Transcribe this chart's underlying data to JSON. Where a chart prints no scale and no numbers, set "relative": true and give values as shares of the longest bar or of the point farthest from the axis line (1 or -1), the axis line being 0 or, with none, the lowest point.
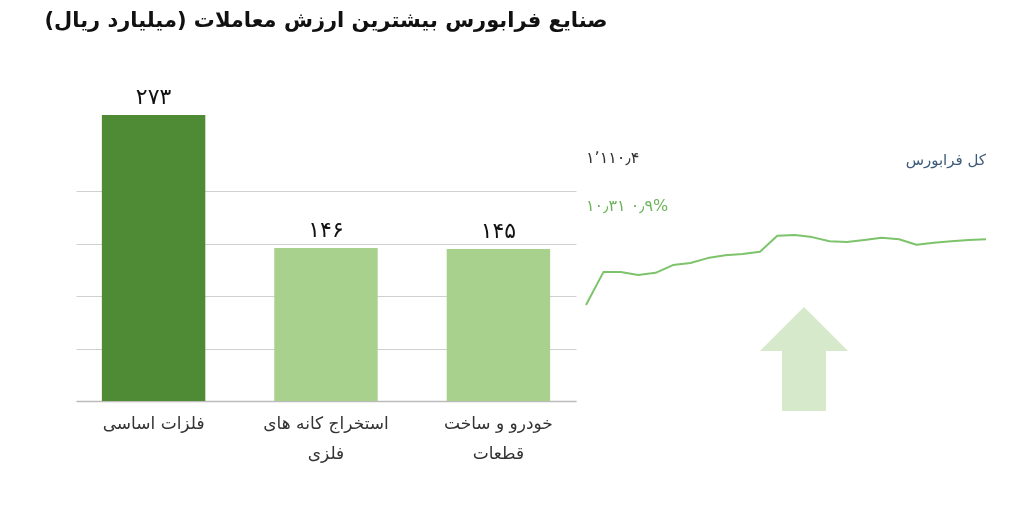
{
  "chart_data": [
    {
      "type": "bar",
      "title": "صنایع فرابورس بیشترین ارزش معاملات  (میلیارد ریال)",
      "categories": [
        "فلزات اساسی",
        "استخراج کانه های فلزی",
        "خودرو و ساخت قطعات"
      ],
      "values": [
        273,
        146,
        145
      ],
      "value_labels": [
        "۲۷۳",
        "۱۴۶",
        "۱۴۵"
      ],
      "colors": [
        "#4f8a35",
        "#a9d18e",
        "#a9d18e"
      ],
      "yticks": [
        {
          "value": 0,
          "label": null
        },
        {
          "value": 50,
          "label": null
        },
        {
          "value": 100,
          "label": null
        },
        {
          "value": 150,
          "label": null
        },
        {
          "value": 200,
          "label": null
        }
      ],
      "tick_labels": "x",
      "grid": "y"
    },
    {
      "type": "line",
      "relative": true,
      "title": "کل فرابورس",
      "annotations": [
        "۱٬۱۱۰٫۴",
        "۱۰٫۳۱  ۰٫۹%"
      ],
      "categories": [
        null,
        null,
        null,
        null,
        null,
        null,
        null,
        null,
        null,
        null,
        null,
        null,
        null,
        null,
        null,
        null,
        null,
        null,
        null,
        null,
        null,
        null,
        null,
        null
      ],
      "series": [
        {
          "color": "#7dc36b",
          "values": [
            0,
            0.47,
            0.47,
            0.43,
            0.46,
            0.57,
            0.6,
            0.67,
            0.71,
            0.73,
            0.76,
            0.99,
            1,
            0.97,
            0.91,
            0.9,
            0.93,
            0.96,
            0.94,
            0.86,
            0.89,
            0.91,
            0.93,
            0.94
          ]
        }
      ]
    }
  ]
}
